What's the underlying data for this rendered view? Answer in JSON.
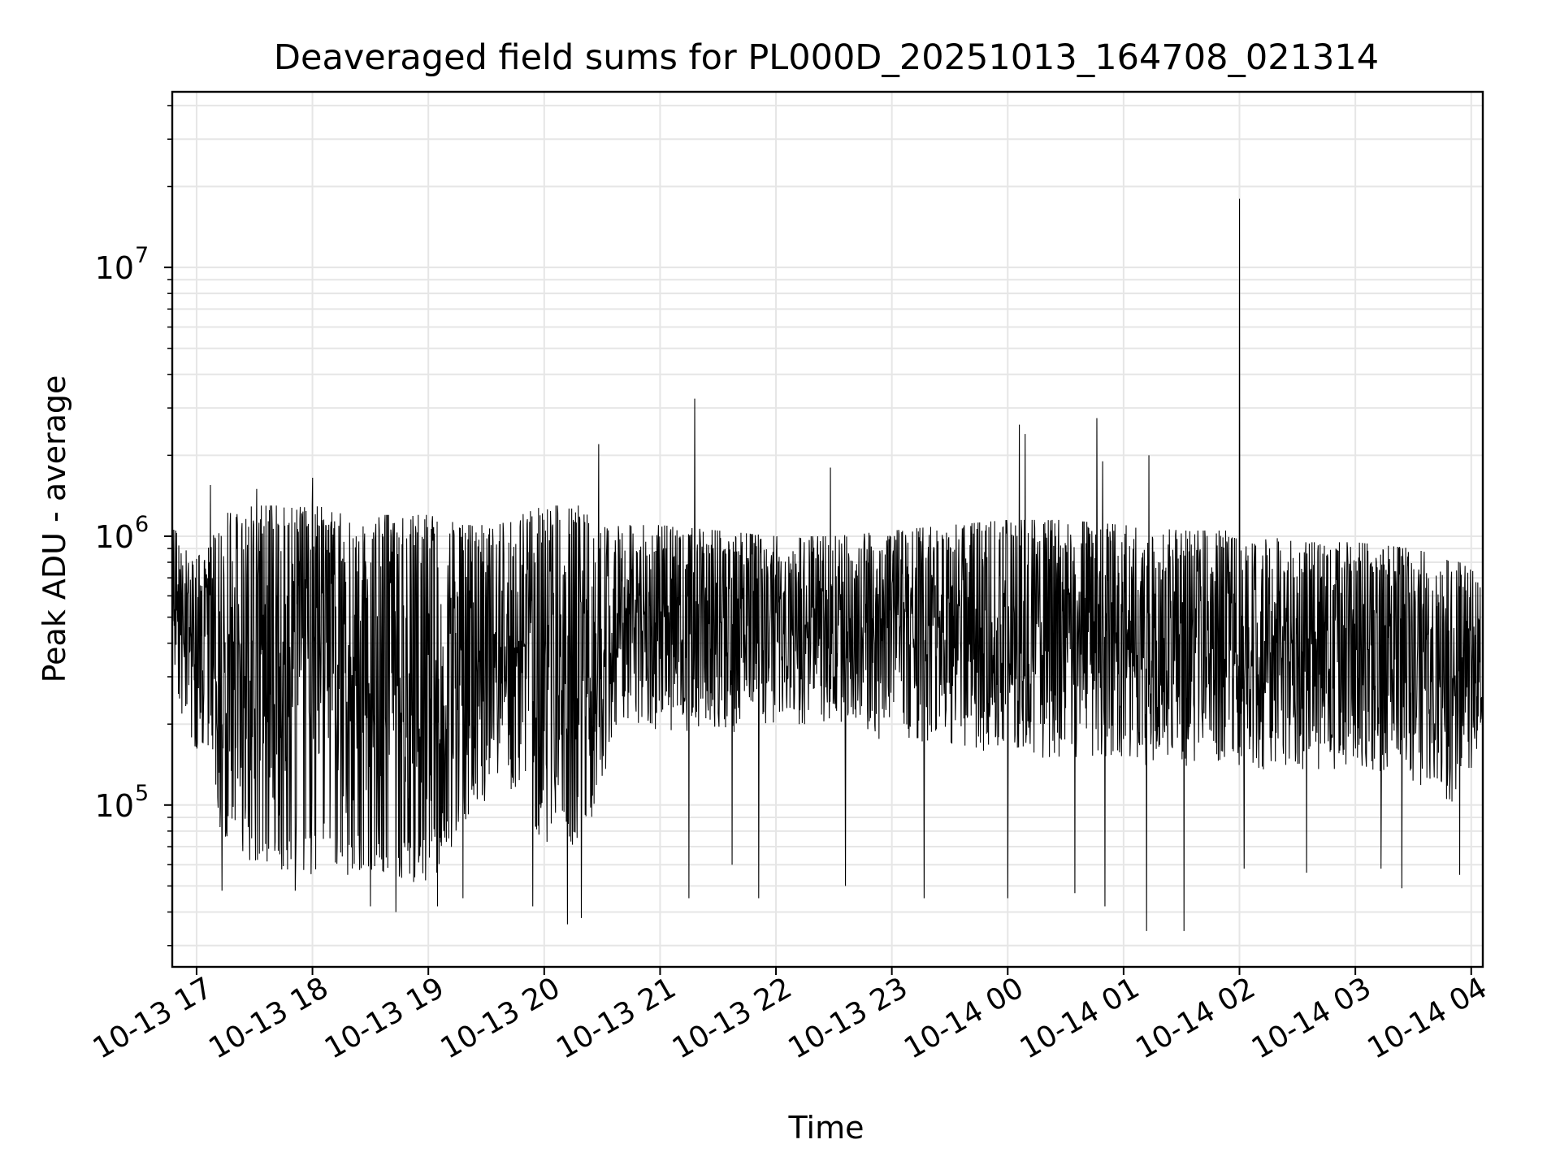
{
  "chart_data": {
    "type": "line",
    "title": "Deaveraged field sums for PL000D_20251013_164708_021314",
    "xlabel": "Time",
    "ylabel": "Peak ADU - average",
    "yscale": "log",
    "ylim": [
      25000,
      45000000
    ],
    "xlim_hours": [
      16.79,
      28.1
    ],
    "grid": true,
    "line_color": "#000000",
    "grid_color": "#e6e6e6",
    "x_ticks": [
      {
        "hour": 17,
        "label": "10-13 17"
      },
      {
        "hour": 18,
        "label": "10-13 18"
      },
      {
        "hour": 19,
        "label": "10-13 19"
      },
      {
        "hour": 20,
        "label": "10-13 20"
      },
      {
        "hour": 21,
        "label": "10-13 21"
      },
      {
        "hour": 22,
        "label": "10-13 22"
      },
      {
        "hour": 23,
        "label": "10-13 23"
      },
      {
        "hour": 24,
        "label": "10-14 00"
      },
      {
        "hour": 25,
        "label": "10-14 01"
      },
      {
        "hour": 26,
        "label": "10-14 02"
      },
      {
        "hour": 27,
        "label": "10-14 03"
      },
      {
        "hour": 28,
        "label": "10-14 04"
      }
    ],
    "y_ticks": [
      {
        "value": 100000,
        "base": "10",
        "exp": "5"
      },
      {
        "value": 1000000,
        "base": "10",
        "exp": "6"
      },
      {
        "value": 10000000,
        "base": "10",
        "exp": "7"
      }
    ],
    "envelope": [
      {
        "t": 16.79,
        "upper": 1200000,
        "lower": 300000
      },
      {
        "t": 16.95,
        "upper": 800000,
        "lower": 150000
      },
      {
        "t": 17.1,
        "upper": 900000,
        "lower": 150000
      },
      {
        "t": 17.2,
        "upper": 1200000,
        "lower": 80000
      },
      {
        "t": 17.5,
        "upper": 1300000,
        "lower": 60000
      },
      {
        "t": 18.0,
        "upper": 1300000,
        "lower": 55000
      },
      {
        "t": 18.5,
        "upper": 1200000,
        "lower": 55000
      },
      {
        "t": 19.0,
        "upper": 1200000,
        "lower": 50000
      },
      {
        "t": 19.3,
        "upper": 1100000,
        "lower": 80000
      },
      {
        "t": 19.6,
        "upper": 1100000,
        "lower": 120000
      },
      {
        "t": 19.8,
        "upper": 1200000,
        "lower": 110000
      },
      {
        "t": 20.0,
        "upper": 1300000,
        "lower": 70000
      },
      {
        "t": 20.3,
        "upper": 1300000,
        "lower": 70000
      },
      {
        "t": 20.5,
        "upper": 1250000,
        "lower": 110000
      },
      {
        "t": 20.6,
        "upper": 1100000,
        "lower": 200000
      },
      {
        "t": 21.0,
        "upper": 1100000,
        "lower": 180000
      },
      {
        "t": 21.5,
        "upper": 1050000,
        "lower": 180000
      },
      {
        "t": 22.0,
        "upper": 1000000,
        "lower": 200000
      },
      {
        "t": 22.5,
        "upper": 1000000,
        "lower": 200000
      },
      {
        "t": 23.0,
        "upper": 1050000,
        "lower": 170000
      },
      {
        "t": 23.5,
        "upper": 1100000,
        "lower": 170000
      },
      {
        "t": 24.0,
        "upper": 1150000,
        "lower": 150000
      },
      {
        "t": 24.5,
        "upper": 1150000,
        "lower": 150000
      },
      {
        "t": 25.0,
        "upper": 1100000,
        "lower": 140000
      },
      {
        "t": 25.5,
        "upper": 1050000,
        "lower": 140000
      },
      {
        "t": 26.0,
        "upper": 1050000,
        "lower": 140000
      },
      {
        "t": 26.5,
        "upper": 950000,
        "lower": 130000
      },
      {
        "t": 27.0,
        "upper": 950000,
        "lower": 130000
      },
      {
        "t": 27.5,
        "upper": 900000,
        "lower": 120000
      },
      {
        "t": 27.9,
        "upper": 800000,
        "lower": 100000
      },
      {
        "t": 28.1,
        "upper": 700000,
        "lower": 180000
      }
    ],
    "spikes": [
      {
        "t": 17.12,
        "value": 1550000
      },
      {
        "t": 17.52,
        "value": 1500000
      },
      {
        "t": 18.0,
        "value": 1650000
      },
      {
        "t": 20.47,
        "value": 2200000
      },
      {
        "t": 21.3,
        "value": 3250000
      },
      {
        "t": 22.47,
        "value": 1800000
      },
      {
        "t": 24.1,
        "value": 2600000
      },
      {
        "t": 24.15,
        "value": 2400000
      },
      {
        "t": 24.77,
        "value": 2750000
      },
      {
        "t": 24.82,
        "value": 1900000
      },
      {
        "t": 25.22,
        "value": 2000000
      },
      {
        "t": 26.0,
        "value": 18000000
      }
    ],
    "dips": [
      {
        "t": 17.22,
        "value": 48000
      },
      {
        "t": 17.85,
        "value": 48000
      },
      {
        "t": 18.5,
        "value": 42000
      },
      {
        "t": 18.72,
        "value": 40000
      },
      {
        "t": 19.08,
        "value": 42000
      },
      {
        "t": 19.3,
        "value": 45000
      },
      {
        "t": 19.9,
        "value": 42000
      },
      {
        "t": 20.2,
        "value": 36000
      },
      {
        "t": 20.32,
        "value": 38000
      },
      {
        "t": 21.25,
        "value": 45000
      },
      {
        "t": 21.62,
        "value": 60000
      },
      {
        "t": 21.85,
        "value": 45000
      },
      {
        "t": 22.6,
        "value": 50000
      },
      {
        "t": 23.28,
        "value": 45000
      },
      {
        "t": 24.0,
        "value": 45000
      },
      {
        "t": 24.58,
        "value": 47000
      },
      {
        "t": 24.84,
        "value": 42000
      },
      {
        "t": 25.2,
        "value": 34000
      },
      {
        "t": 25.52,
        "value": 34000
      },
      {
        "t": 26.04,
        "value": 58000
      },
      {
        "t": 26.58,
        "value": 56000
      },
      {
        "t": 27.22,
        "value": 58000
      },
      {
        "t": 27.4,
        "value": 49000
      },
      {
        "t": 27.9,
        "value": 55000
      }
    ]
  }
}
